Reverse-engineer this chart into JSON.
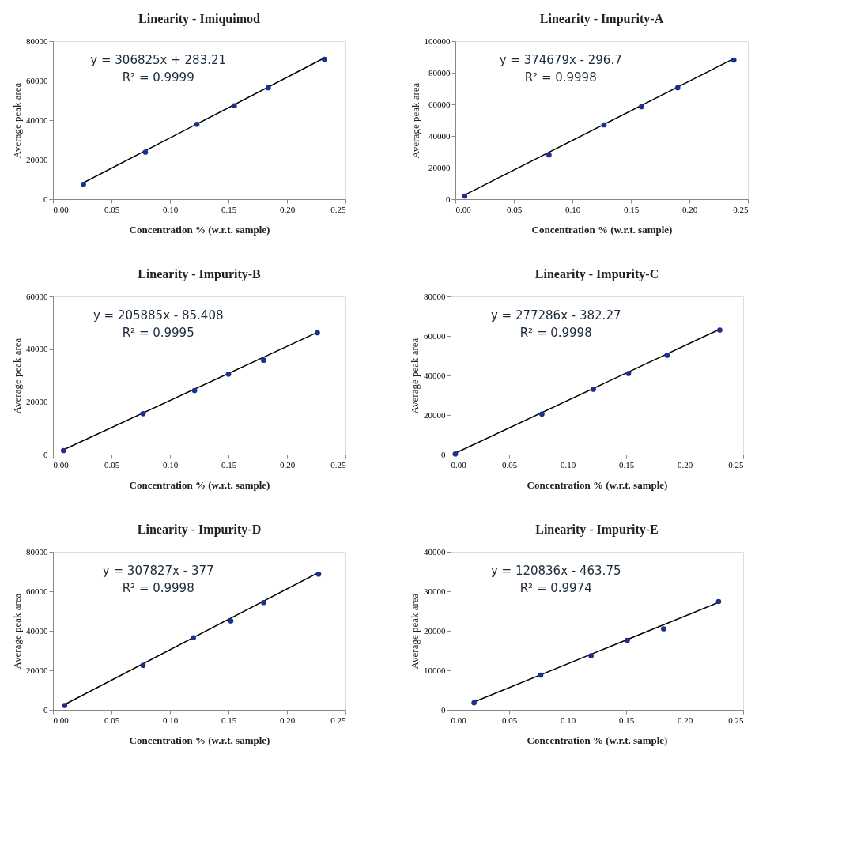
{
  "chart_data": [
    {
      "type": "scatter",
      "title": "Linearity - Imiquimod",
      "xlabel": "Concentration % (w.r.t. sample)",
      "ylabel": "Average peak area",
      "annotations": [
        "y = 306825x + 283.21",
        "R² = 0.9999"
      ],
      "xlim": [
        0,
        0.25
      ],
      "xticks": [
        {
          "value": 0,
          "label": "0.00"
        },
        0.05,
        {
          "value": 0.1,
          "label": "0.10"
        },
        0.15,
        {
          "value": 0.2,
          "label": "0.20"
        },
        0.25
      ],
      "ylim": [
        0,
        80000
      ],
      "yticks": [
        0,
        20000,
        40000,
        60000,
        80000
      ],
      "series": [
        {
          "type": "line",
          "color": "#000000",
          "line_style": "solid",
          "x": [
            0.026,
            0.232
          ],
          "values": [
            8300,
            71500
          ],
          "marker": "none"
        },
        {
          "color": "#1f2f8f",
          "marker": "circle",
          "x": [
            0.026,
            0.079,
            0.123,
            0.155,
            0.184,
            0.232
          ],
          "values": [
            7500,
            23800,
            37900,
            47300,
            56400,
            70800
          ]
        }
      ]
    },
    {
      "type": "scatter",
      "title": "Linearity - Impurity-A",
      "xlabel": "Concentration % (w.r.t. sample)",
      "ylabel": "Average peak area",
      "annotations": [
        "y = 374679x - 296.7",
        "R² = 0.9998"
      ],
      "xlim": [
        0,
        0.25
      ],
      "xticks": [
        {
          "value": 0,
          "label": "0.00"
        },
        0.05,
        {
          "value": 0.1,
          "label": "0.10"
        },
        0.15,
        {
          "value": 0.2,
          "label": "0.20"
        },
        0.25
      ],
      "ylim": [
        0,
        100000
      ],
      "yticks": [
        0,
        20000,
        40000,
        60000,
        80000,
        100000
      ],
      "series": [
        {
          "type": "line",
          "color": "#000000",
          "line_style": "solid",
          "x": [
            0.008,
            0.238
          ],
          "values": [
            2700,
            88900
          ],
          "marker": "none"
        },
        {
          "color": "#1f2f8f",
          "marker": "circle",
          "x": [
            0.008,
            0.08,
            0.127,
            0.159,
            0.19,
            0.238
          ],
          "values": [
            2000,
            28000,
            47000,
            58500,
            70500,
            88000
          ]
        }
      ]
    },
    {
      "type": "scatter",
      "title": "Linearity - Impurity-B",
      "xlabel": "Concentration % (w.r.t. sample)",
      "ylabel": "Average peak area",
      "annotations": [
        "y = 205885x - 85.408",
        "R² = 0.9995"
      ],
      "xlim": [
        0,
        0.25
      ],
      "xticks": [
        {
          "value": 0,
          "label": "0.00"
        },
        0.05,
        {
          "value": 0.1,
          "label": "0.10"
        },
        0.15,
        {
          "value": 0.2,
          "label": "0.20"
        },
        0.25
      ],
      "ylim": [
        0,
        60000
      ],
      "yticks": [
        0,
        20000,
        40000,
        60000
      ],
      "series": [
        {
          "type": "line",
          "color": "#000000",
          "line_style": "solid",
          "x": [
            0.009,
            0.226
          ],
          "values": [
            1800,
            46400
          ],
          "marker": "none"
        },
        {
          "color": "#1f2f8f",
          "marker": "circle",
          "x": [
            0.009,
            0.077,
            0.121,
            0.15,
            0.18,
            0.226
          ],
          "values": [
            1500,
            15500,
            24300,
            30500,
            35800,
            46200
          ]
        }
      ]
    },
    {
      "type": "scatter",
      "title": "Linearity - Impurity-C",
      "xlabel": "Concentration % (w.r.t. sample)",
      "ylabel": "Average peak area",
      "annotations": [
        "y = 277286x - 382.27",
        "R² = 0.9998"
      ],
      "xlim": [
        0,
        0.25
      ],
      "xticks": [
        {
          "value": 0,
          "label": "0.00"
        },
        0.05,
        {
          "value": 0.1,
          "label": "0.10"
        },
        0.15,
        {
          "value": 0.2,
          "label": "0.20"
        },
        0.25
      ],
      "ylim": [
        0,
        80000
      ],
      "yticks": [
        0,
        20000,
        40000,
        60000,
        80000
      ],
      "series": [
        {
          "type": "line",
          "color": "#000000",
          "line_style": "solid",
          "x": [
            0.004,
            0.23
          ],
          "values": [
            700,
            63400
          ],
          "marker": "none"
        },
        {
          "color": "#1f2f8f",
          "marker": "circle",
          "x": [
            0.004,
            0.078,
            0.122,
            0.152,
            0.185,
            0.23
          ],
          "values": [
            300,
            20500,
            33000,
            41000,
            50200,
            63000
          ]
        }
      ]
    },
    {
      "type": "scatter",
      "title": "Linearity - Impurity-D",
      "xlabel": "Concentration % (w.r.t. sample)",
      "ylabel": "Average peak area",
      "annotations": [
        "y = 307827x - 377",
        "R² = 0.9998"
      ],
      "xlim": [
        0,
        0.25
      ],
      "xticks": [
        {
          "value": 0,
          "label": "0.00"
        },
        0.05,
        {
          "value": 0.1,
          "label": "0.10"
        },
        0.15,
        {
          "value": 0.2,
          "label": "0.20"
        },
        0.25
      ],
      "ylim": [
        0,
        80000
      ],
      "yticks": [
        0,
        20000,
        40000,
        60000,
        80000
      ],
      "series": [
        {
          "type": "line",
          "color": "#000000",
          "line_style": "solid",
          "x": [
            0.01,
            0.227
          ],
          "values": [
            2700,
            69500
          ],
          "marker": "none"
        },
        {
          "color": "#1f2f8f",
          "marker": "circle",
          "x": [
            0.01,
            0.077,
            0.12,
            0.152,
            0.18,
            0.227
          ],
          "values": [
            2200,
            22500,
            36500,
            45000,
            54300,
            68700
          ]
        }
      ]
    },
    {
      "type": "scatter",
      "title": "Linearity - Impurity-E",
      "xlabel": "Concentration % (w.r.t. sample)",
      "ylabel": "Average peak area",
      "annotations": [
        "y = 120836x - 463.75",
        "R² = 0.9974"
      ],
      "xlim": [
        0,
        0.25
      ],
      "xticks": [
        {
          "value": 0,
          "label": "0.00"
        },
        0.05,
        {
          "value": 0.1,
          "label": "0.10"
        },
        0.15,
        {
          "value": 0.2,
          "label": "0.20"
        },
        0.25
      ],
      "ylim": [
        0,
        40000
      ],
      "yticks": [
        0,
        10000,
        20000,
        30000,
        40000
      ],
      "series": [
        {
          "type": "line",
          "color": "#000000",
          "line_style": "solid",
          "x": [
            0.02,
            0.229
          ],
          "values": [
            2000,
            27200
          ],
          "marker": "none"
        },
        {
          "color": "#1f2f8f",
          "marker": "circle",
          "x": [
            0.02,
            0.077,
            0.12,
            0.151,
            0.182,
            0.229
          ],
          "values": [
            1800,
            8800,
            13700,
            17600,
            20500,
            27400
          ]
        }
      ]
    }
  ]
}
